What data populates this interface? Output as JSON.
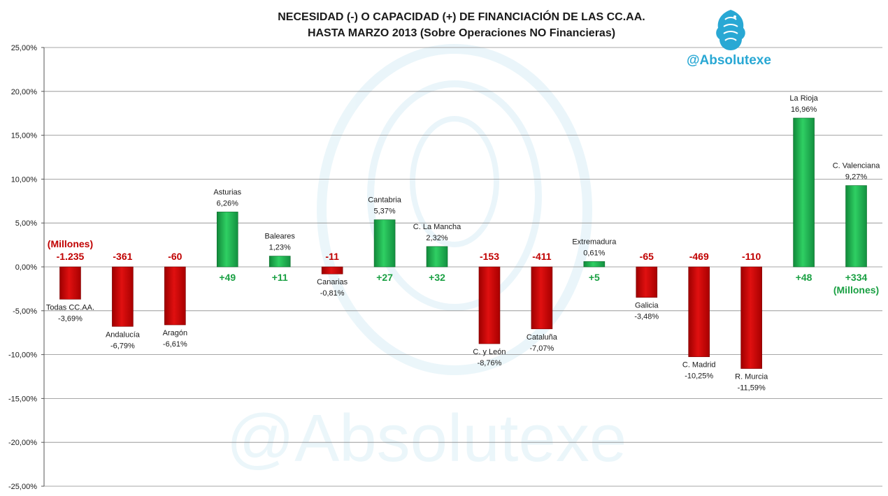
{
  "title_line1": "NECESIDAD (-) O CAPACIDAD (+) DE FINANCIACIÓN DE LAS CC.AA.",
  "title_line2": "HASTA MARZO 2013 (Sobre Operaciones NO Financieras)",
  "brand": "@Absolutexe",
  "watermark": "@Absolutexe",
  "colors": {
    "negative": "#cc0000",
    "positive": "#1db04a",
    "neg_text": "#c00000",
    "pos_text": "#1aa043",
    "brand": "#29a8d4"
  },
  "chart_data": {
    "type": "bar",
    "ylim": [
      -25,
      25
    ],
    "y_ticks": [
      "25,00%",
      "20,00%",
      "15,00%",
      "10,00%",
      "5,00%",
      "0,00%",
      "-5,00%",
      "-10,00%",
      "-15,00%",
      "-20,00%",
      "-25,00%"
    ],
    "grid": true,
    "legend": "none",
    "bars": [
      {
        "name": "Todas CC.AA.",
        "value": -3.69,
        "value_label": "-3,69%",
        "millions": "-1.235",
        "millions_note": "(Millones)"
      },
      {
        "name": "Andalucía",
        "value": -6.79,
        "value_label": "-6,79%",
        "millions": "-361"
      },
      {
        "name": "Aragón",
        "value": -6.61,
        "value_label": "-6,61%",
        "millions": "-60"
      },
      {
        "name": "Asturias",
        "value": 6.26,
        "value_label": "6,26%",
        "millions": "+49"
      },
      {
        "name": "Baleares",
        "value": 1.23,
        "value_label": "1,23%",
        "millions": "+11"
      },
      {
        "name": "Canarias",
        "value": -0.81,
        "value_label": "-0,81%",
        "millions": "-11"
      },
      {
        "name": "Cantabria",
        "value": 5.37,
        "value_label": "5,37%",
        "millions": "+27"
      },
      {
        "name": "C. La Mancha",
        "value": 2.32,
        "value_label": "2,32%",
        "millions": "+32"
      },
      {
        "name": "C. y León",
        "value": -8.76,
        "value_label": "-8,76%",
        "millions": "-153"
      },
      {
        "name": "Cataluña",
        "value": -7.07,
        "value_label": "-7,07%",
        "millions": "-411"
      },
      {
        "name": "Extremadura",
        "value": 0.61,
        "value_label": "0,61%",
        "millions": "+5"
      },
      {
        "name": "Galicia",
        "value": -3.48,
        "value_label": "-3,48%",
        "millions": "-65"
      },
      {
        "name": "C. Madrid",
        "value": -10.25,
        "value_label": "-10,25%",
        "millions": "-469"
      },
      {
        "name": "R. Murcia",
        "value": -11.59,
        "value_label": "-11,59%",
        "millions": "-110"
      },
      {
        "name": "La Rioja",
        "value": 16.96,
        "value_label": "16,96%",
        "millions": "+48"
      },
      {
        "name": "C. Valenciana",
        "value": 9.27,
        "value_label": "9,27%",
        "millions": "+334",
        "millions_note": "(Millones)"
      }
    ]
  }
}
